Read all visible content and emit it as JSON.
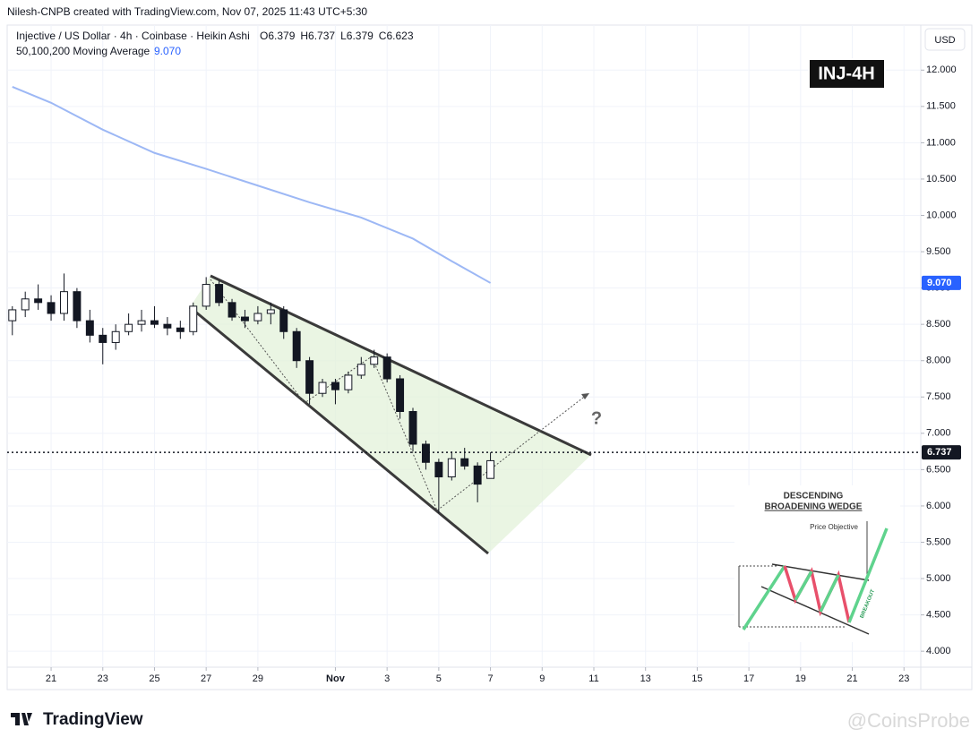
{
  "header": {
    "credit": "Nilesh-CNPB created with TradingView.com, Nov 07, 2025 11:43 UTC+5:30"
  },
  "footer": {
    "logo": "TradingView",
    "watermark": "@CoinsProbe"
  },
  "chart_data": {
    "type": "candlestick",
    "title": "Injective / US Dollar · 4h · Coinbase · Heikin Ashi",
    "ohlc_labels": [
      "O",
      "H",
      "L",
      "C"
    ],
    "badge": "INJ-4H",
    "currency": "USD",
    "annotation": "?",
    "x": [
      19.5,
      20,
      20.5,
      21,
      21.5,
      22,
      22.5,
      23,
      23.5,
      24,
      24.5,
      25,
      25.5,
      26,
      26.5,
      27,
      27.5,
      28,
      28.5,
      29,
      29.5,
      30,
      30.5,
      31,
      31.5,
      32,
      32.5,
      33,
      33.5,
      34,
      34.5,
      35,
      35.5,
      36,
      36.5,
      37,
      37.5,
      38
    ],
    "open": [
      8.55,
      8.7,
      8.85,
      8.8,
      8.65,
      8.95,
      8.55,
      8.35,
      8.25,
      8.4,
      8.5,
      8.55,
      8.5,
      8.45,
      8.4,
      8.75,
      9.05,
      8.8,
      8.6,
      8.55,
      8.65,
      8.7,
      8.4,
      8.0,
      7.55,
      7.7,
      7.6,
      7.8,
      7.95,
      8.05,
      7.75,
      7.3,
      6.85,
      6.6,
      6.4,
      6.65,
      6.55,
      6.379
    ],
    "high": [
      8.75,
      8.95,
      9.05,
      8.9,
      9.2,
      9.0,
      8.7,
      8.45,
      8.5,
      8.65,
      8.7,
      8.75,
      8.6,
      8.55,
      8.8,
      9.15,
      9.1,
      8.85,
      8.7,
      8.75,
      8.8,
      8.75,
      8.45,
      8.05,
      7.75,
      7.75,
      7.85,
      8.05,
      8.15,
      8.1,
      7.8,
      7.35,
      6.9,
      6.65,
      6.75,
      6.8,
      6.6,
      6.737
    ],
    "low": [
      8.35,
      8.6,
      8.7,
      8.55,
      8.55,
      8.45,
      8.25,
      7.95,
      8.15,
      8.35,
      8.4,
      8.45,
      8.35,
      8.3,
      8.35,
      8.7,
      8.75,
      8.55,
      8.45,
      8.5,
      8.5,
      8.3,
      7.9,
      7.4,
      7.5,
      7.4,
      7.55,
      7.75,
      7.9,
      7.7,
      7.2,
      6.75,
      6.5,
      5.9,
      6.35,
      6.5,
      6.05,
      6.379
    ],
    "close": [
      8.7,
      8.85,
      8.8,
      8.65,
      8.95,
      8.55,
      8.35,
      8.25,
      8.4,
      8.5,
      8.55,
      8.5,
      8.45,
      8.4,
      8.75,
      9.05,
      8.8,
      8.6,
      8.55,
      8.65,
      8.7,
      8.4,
      8.0,
      7.55,
      7.7,
      7.6,
      7.8,
      7.95,
      8.05,
      7.75,
      7.3,
      6.85,
      6.6,
      6.4,
      6.65,
      6.55,
      6.3,
      6.623
    ],
    "up_color": "#ffffff",
    "down_color": "#131722",
    "moving_average": {
      "name": "50,100,200 Moving Average",
      "color": "#9db8f5",
      "x": [
        19.5,
        21,
        23,
        25,
        27,
        29,
        31,
        33,
        35,
        36.5,
        38
      ],
      "values": [
        11.77,
        11.55,
        11.18,
        10.86,
        10.64,
        10.41,
        10.18,
        9.97,
        9.68,
        9.37,
        9.07
      ],
      "value_labels": [
        "9.070"
      ],
      "label_color": "#2962ff"
    },
    "price_line": {
      "value": 6.737,
      "label": "6.737"
    },
    "xlim": [
      19.3,
      54.65
    ],
    "xticks": [
      21,
      23,
      25,
      27,
      29,
      {
        "value": 32,
        "label": "Nov"
      },
      {
        "value": 34,
        "label": "3"
      },
      {
        "value": 36,
        "label": "5"
      },
      {
        "value": 38,
        "label": "7"
      },
      {
        "value": 40,
        "label": "9"
      },
      {
        "value": 42,
        "label": "11"
      },
      {
        "value": 44,
        "label": "13"
      },
      {
        "value": 46,
        "label": "15"
      },
      {
        "value": 48,
        "label": "17"
      },
      {
        "value": 50,
        "label": "19"
      },
      {
        "value": 52,
        "label": "21"
      },
      {
        "value": 54,
        "label": "23"
      }
    ],
    "ylim": [
      3.78,
      12.62
    ],
    "yticks": [
      {
        "value": 4,
        "label": "4.000"
      },
      {
        "value": 4.5,
        "label": "4.500"
      },
      {
        "value": 5,
        "label": "5.000"
      },
      {
        "value": 5.5,
        "label": "5.500"
      },
      {
        "value": 6,
        "label": "6.000"
      },
      {
        "value": 6.5,
        "label": "6.500"
      },
      {
        "value": 7,
        "label": "7.000"
      },
      {
        "value": 7.5,
        "label": "7.500"
      },
      {
        "value": 8,
        "label": "8.000"
      },
      {
        "value": 8.5,
        "label": "8.500"
      },
      {
        "value": 9,
        "label": "9.000"
      },
      {
        "value": 9.5,
        "label": "9.500"
      },
      {
        "value": 10,
        "label": "10.000"
      },
      {
        "value": 10.5,
        "label": "10.500"
      },
      {
        "value": 11,
        "label": "11.000"
      },
      {
        "value": 11.5,
        "label": "11.500"
      },
      {
        "value": 12,
        "label": "12.000"
      }
    ],
    "grid": true,
    "inset": {
      "title": "DESCENDING",
      "subtitle": "BROADENING WEDGE",
      "target": "Price Objective",
      "breakout": "BREAKOUT"
    }
  }
}
